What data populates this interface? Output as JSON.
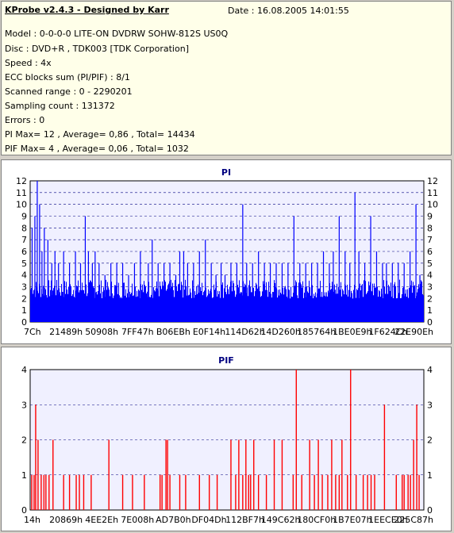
{
  "info": {
    "title": "KProbe v2.4.3 - Designed by Karr",
    "date": "Date : 16.08.2005 14:01:55",
    "lines": [
      "Model : 0-0-0-0 LITE-ON DVDRW SOHW-812S  US0Q",
      "Disc : DVD+R , TDK003 [TDK Corporation]",
      "Speed : 4x",
      "ECC blocks sum (PI/PIF) : 8/1",
      "Scanned range : 0 - 2290201",
      "Sampling count : 131372",
      "Errors : 0",
      "PI Max= 12 , Average= 0,86 , Total= 14434",
      "PIF Max= 4 , Average= 0,06 , Total= 1032"
    ]
  },
  "colors": {
    "pi": "#0000ff",
    "pif": "#ff0000",
    "grid": "#000080",
    "plotbg": "#f0f0ff"
  },
  "chart_data": [
    {
      "type": "bar",
      "title": "PI",
      "ylim": [
        0,
        12
      ],
      "yticks": [
        "0",
        "1",
        "2",
        "3",
        "4",
        "5",
        "6",
        "7",
        "8",
        "9",
        "10",
        "11",
        "12"
      ],
      "xticks": [
        "7Ch",
        "21489h",
        "50908h",
        "7FF47h",
        "B06EBh",
        "E0F14h",
        "114D62h",
        "14D260h",
        "185764h",
        "1BE0E9h",
        "1F624Ch",
        "22E90Eh"
      ],
      "baseline": 2,
      "peaks": [
        {
          "x": 0.005,
          "v": 8
        },
        {
          "x": 0.012,
          "v": 9
        },
        {
          "x": 0.018,
          "v": 12
        },
        {
          "x": 0.024,
          "v": 10
        },
        {
          "x": 0.03,
          "v": 6
        },
        {
          "x": 0.036,
          "v": 8
        },
        {
          "x": 0.045,
          "v": 7
        },
        {
          "x": 0.055,
          "v": 5
        },
        {
          "x": 0.063,
          "v": 6
        },
        {
          "x": 0.072,
          "v": 5
        },
        {
          "x": 0.085,
          "v": 6
        },
        {
          "x": 0.1,
          "v": 5
        },
        {
          "x": 0.115,
          "v": 6
        },
        {
          "x": 0.128,
          "v": 5
        },
        {
          "x": 0.14,
          "v": 9
        },
        {
          "x": 0.148,
          "v": 6
        },
        {
          "x": 0.158,
          "v": 5
        },
        {
          "x": 0.165,
          "v": 6
        },
        {
          "x": 0.175,
          "v": 5
        },
        {
          "x": 0.19,
          "v": 4
        },
        {
          "x": 0.205,
          "v": 5
        },
        {
          "x": 0.22,
          "v": 5
        },
        {
          "x": 0.235,
          "v": 5
        },
        {
          "x": 0.25,
          "v": 4
        },
        {
          "x": 0.265,
          "v": 5
        },
        {
          "x": 0.28,
          "v": 6
        },
        {
          "x": 0.3,
          "v": 5
        },
        {
          "x": 0.31,
          "v": 7
        },
        {
          "x": 0.325,
          "v": 5
        },
        {
          "x": 0.34,
          "v": 5
        },
        {
          "x": 0.355,
          "v": 5
        },
        {
          "x": 0.37,
          "v": 4
        },
        {
          "x": 0.38,
          "v": 6
        },
        {
          "x": 0.39,
          "v": 6
        },
        {
          "x": 0.4,
          "v": 5
        },
        {
          "x": 0.415,
          "v": 5
        },
        {
          "x": 0.43,
          "v": 6
        },
        {
          "x": 0.445,
          "v": 7
        },
        {
          "x": 0.46,
          "v": 5
        },
        {
          "x": 0.472,
          "v": 4
        },
        {
          "x": 0.485,
          "v": 5
        },
        {
          "x": 0.495,
          "v": 4
        },
        {
          "x": 0.51,
          "v": 5
        },
        {
          "x": 0.525,
          "v": 5
        },
        {
          "x": 0.54,
          "v": 10
        },
        {
          "x": 0.55,
          "v": 5
        },
        {
          "x": 0.565,
          "v": 5
        },
        {
          "x": 0.58,
          "v": 6
        },
        {
          "x": 0.595,
          "v": 5
        },
        {
          "x": 0.61,
          "v": 5
        },
        {
          "x": 0.625,
          "v": 5
        },
        {
          "x": 0.64,
          "v": 5
        },
        {
          "x": 0.655,
          "v": 5
        },
        {
          "x": 0.67,
          "v": 9
        },
        {
          "x": 0.685,
          "v": 5
        },
        {
          "x": 0.7,
          "v": 5
        },
        {
          "x": 0.715,
          "v": 5
        },
        {
          "x": 0.73,
          "v": 5
        },
        {
          "x": 0.745,
          "v": 6
        },
        {
          "x": 0.76,
          "v": 5
        },
        {
          "x": 0.77,
          "v": 6
        },
        {
          "x": 0.785,
          "v": 9
        },
        {
          "x": 0.8,
          "v": 6
        },
        {
          "x": 0.812,
          "v": 5
        },
        {
          "x": 0.825,
          "v": 11
        },
        {
          "x": 0.835,
          "v": 6
        },
        {
          "x": 0.85,
          "v": 5
        },
        {
          "x": 0.865,
          "v": 9
        },
        {
          "x": 0.88,
          "v": 6
        },
        {
          "x": 0.895,
          "v": 5
        },
        {
          "x": 0.905,
          "v": 5
        },
        {
          "x": 0.92,
          "v": 5
        },
        {
          "x": 0.935,
          "v": 5
        },
        {
          "x": 0.95,
          "v": 5
        },
        {
          "x": 0.965,
          "v": 6
        },
        {
          "x": 0.98,
          "v": 10
        },
        {
          "x": 0.99,
          "v": 4
        }
      ]
    },
    {
      "type": "bar",
      "title": "PIF",
      "ylim": [
        0,
        4
      ],
      "yticks": [
        "0",
        "1",
        "2",
        "3",
        "4"
      ],
      "xticks": [
        "14h",
        "20869h",
        "4EE2Eh",
        "7E008h",
        "AD7B0h",
        "DF04Dh",
        "112BF7h",
        "149C62h",
        "180CF0h",
        "1B7E07h",
        "1EECE0h",
        "225C87h"
      ],
      "bars": [
        {
          "x": 0.004,
          "v": 1
        },
        {
          "x": 0.01,
          "v": 1
        },
        {
          "x": 0.014,
          "v": 3
        },
        {
          "x": 0.02,
          "v": 2
        },
        {
          "x": 0.028,
          "v": 1
        },
        {
          "x": 0.035,
          "v": 1
        },
        {
          "x": 0.04,
          "v": 1
        },
        {
          "x": 0.048,
          "v": 1
        },
        {
          "x": 0.058,
          "v": 2
        },
        {
          "x": 0.085,
          "v": 1
        },
        {
          "x": 0.1,
          "v": 1
        },
        {
          "x": 0.117,
          "v": 1
        },
        {
          "x": 0.125,
          "v": 1
        },
        {
          "x": 0.136,
          "v": 1
        },
        {
          "x": 0.155,
          "v": 1
        },
        {
          "x": 0.2,
          "v": 2
        },
        {
          "x": 0.235,
          "v": 1
        },
        {
          "x": 0.26,
          "v": 1
        },
        {
          "x": 0.29,
          "v": 1
        },
        {
          "x": 0.33,
          "v": 1
        },
        {
          "x": 0.335,
          "v": 1
        },
        {
          "x": 0.345,
          "v": 2
        },
        {
          "x": 0.349,
          "v": 2
        },
        {
          "x": 0.355,
          "v": 1
        },
        {
          "x": 0.38,
          "v": 1
        },
        {
          "x": 0.395,
          "v": 1
        },
        {
          "x": 0.43,
          "v": 1
        },
        {
          "x": 0.455,
          "v": 1
        },
        {
          "x": 0.475,
          "v": 1
        },
        {
          "x": 0.51,
          "v": 2
        },
        {
          "x": 0.522,
          "v": 1
        },
        {
          "x": 0.53,
          "v": 2
        },
        {
          "x": 0.54,
          "v": 1
        },
        {
          "x": 0.548,
          "v": 2
        },
        {
          "x": 0.555,
          "v": 1
        },
        {
          "x": 0.56,
          "v": 1
        },
        {
          "x": 0.568,
          "v": 2
        },
        {
          "x": 0.58,
          "v": 1
        },
        {
          "x": 0.6,
          "v": 1
        },
        {
          "x": 0.62,
          "v": 2
        },
        {
          "x": 0.64,
          "v": 2
        },
        {
          "x": 0.668,
          "v": 1
        },
        {
          "x": 0.676,
          "v": 4
        },
        {
          "x": 0.69,
          "v": 1
        },
        {
          "x": 0.71,
          "v": 2
        },
        {
          "x": 0.722,
          "v": 1
        },
        {
          "x": 0.732,
          "v": 2
        },
        {
          "x": 0.742,
          "v": 1
        },
        {
          "x": 0.756,
          "v": 1
        },
        {
          "x": 0.766,
          "v": 2
        },
        {
          "x": 0.776,
          "v": 1
        },
        {
          "x": 0.785,
          "v": 1
        },
        {
          "x": 0.792,
          "v": 2
        },
        {
          "x": 0.806,
          "v": 1
        },
        {
          "x": 0.814,
          "v": 4
        },
        {
          "x": 0.828,
          "v": 1
        },
        {
          "x": 0.846,
          "v": 1
        },
        {
          "x": 0.857,
          "v": 1
        },
        {
          "x": 0.866,
          "v": 1
        },
        {
          "x": 0.875,
          "v": 1
        },
        {
          "x": 0.9,
          "v": 3
        },
        {
          "x": 0.93,
          "v": 1
        },
        {
          "x": 0.945,
          "v": 1
        },
        {
          "x": 0.95,
          "v": 1
        },
        {
          "x": 0.96,
          "v": 1
        },
        {
          "x": 0.966,
          "v": 1
        },
        {
          "x": 0.974,
          "v": 2
        },
        {
          "x": 0.982,
          "v": 3
        },
        {
          "x": 0.988,
          "v": 1
        }
      ]
    }
  ]
}
